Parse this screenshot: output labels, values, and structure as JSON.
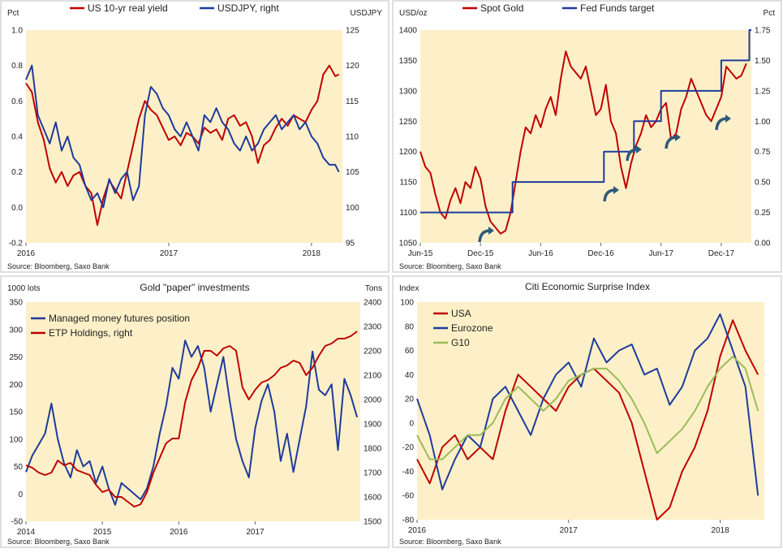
{
  "colors": {
    "red": "#c00000",
    "blue": "#1f3a9c",
    "green": "#9bbb59",
    "plot_bg": "#fdf0c8",
    "frame": "#bfbfbf"
  },
  "chart_data": [
    {
      "type": "line",
      "left_unit": "Pct",
      "right_unit": "USDJPY",
      "source": "Source: Bloomberg, Saxo Bank",
      "x_ticks": [
        "2016",
        "2017",
        "2018"
      ],
      "x_range": [
        0,
        26.6
      ],
      "left_ticks": [
        "1.0",
        "0.8",
        "0.6",
        "0.4",
        "0.2",
        "0.0",
        "-0.2"
      ],
      "ylim_left": [
        -0.2,
        1.0
      ],
      "right_ticks": [
        "125",
        "120",
        "115",
        "110",
        "105",
        "100",
        "95"
      ],
      "ylim_right": [
        95,
        125
      ],
      "legend": [
        "US 10-yr real yield",
        "USDJPY, right"
      ],
      "series": [
        {
          "name": "US 10-yr real yield",
          "color": "red",
          "axis": "left",
          "x": [
            0,
            0.5,
            1,
            1.5,
            2,
            2.5,
            3,
            3.5,
            4,
            4.5,
            5,
            5.5,
            6,
            6.5,
            7,
            7.5,
            8,
            8.5,
            9,
            9.5,
            10,
            10.5,
            11,
            11.5,
            12,
            12.5,
            13,
            13.5,
            14,
            14.5,
            15,
            15.5,
            16,
            16.5,
            17,
            17.5,
            18,
            18.5,
            19,
            19.5,
            20,
            20.5,
            21,
            21.5,
            22,
            22.5,
            23,
            23.5,
            24,
            24.5,
            25,
            25.5,
            26,
            26.3
          ],
          "values": [
            0.7,
            0.65,
            0.48,
            0.38,
            0.22,
            0.14,
            0.2,
            0.12,
            0.18,
            0.2,
            0.12,
            0.08,
            -0.1,
            0.05,
            0.15,
            0.1,
            0.05,
            0.2,
            0.35,
            0.5,
            0.6,
            0.55,
            0.52,
            0.45,
            0.38,
            0.4,
            0.35,
            0.42,
            0.4,
            0.36,
            0.45,
            0.42,
            0.44,
            0.38,
            0.5,
            0.52,
            0.46,
            0.48,
            0.4,
            0.25,
            0.35,
            0.38,
            0.45,
            0.5,
            0.46,
            0.52,
            0.5,
            0.48,
            0.55,
            0.6,
            0.75,
            0.8,
            0.74,
            0.75
          ]
        },
        {
          "name": "USDJPY, right",
          "color": "blue",
          "axis": "right",
          "x": [
            0,
            0.5,
            1,
            1.5,
            2,
            2.5,
            3,
            3.5,
            4,
            4.5,
            5,
            5.5,
            6,
            6.5,
            7,
            7.5,
            8,
            8.5,
            9,
            9.5,
            10,
            10.5,
            11,
            11.5,
            12,
            12.5,
            13,
            13.5,
            14,
            14.5,
            15,
            15.5,
            16,
            16.5,
            17,
            17.5,
            18,
            18.5,
            19,
            19.5,
            20,
            20.5,
            21,
            21.5,
            22,
            22.5,
            23,
            23.5,
            24,
            24.5,
            25,
            25.5,
            26,
            26.3
          ],
          "values": [
            118,
            120,
            113,
            111,
            109,
            112,
            108,
            110,
            107,
            106,
            103,
            101,
            102,
            100,
            104,
            102,
            104,
            105,
            101,
            103,
            113,
            117,
            116,
            114,
            113,
            111,
            110,
            112,
            110,
            108,
            113,
            112,
            114,
            112,
            111,
            109,
            108,
            110,
            108,
            109,
            111,
            112,
            113,
            111,
            112,
            113,
            111,
            112,
            110,
            109,
            107,
            106,
            106,
            105
          ]
        }
      ]
    },
    {
      "type": "line",
      "left_unit": "USD/oz",
      "right_unit": "Pct",
      "source": "Source: Bloomberg, Saxo Bank",
      "x_ticks": [
        "Jun-15",
        "Dec-15",
        "Jun-16",
        "Dec-16",
        "Jun-17",
        "Dec-17"
      ],
      "x_range": [
        0,
        33
      ],
      "left_ticks": [
        "1400",
        "1350",
        "1300",
        "1250",
        "1200",
        "1150",
        "1100",
        "1050"
      ],
      "ylim_left": [
        1050,
        1400
      ],
      "right_ticks": [
        "1.75",
        "1.50",
        "1.25",
        "1.00",
        "0.75",
        "0.50",
        "0.25",
        "0.00"
      ],
      "ylim_right": [
        0,
        1.75
      ],
      "legend": [
        "Spot Gold",
        "Fed Funds target"
      ],
      "series": [
        {
          "name": "Spot Gold",
          "color": "red",
          "axis": "left",
          "x": [
            0,
            0.5,
            1,
            1.5,
            2,
            2.5,
            3,
            3.5,
            4,
            4.5,
            5,
            5.5,
            6,
            6.5,
            7,
            7.5,
            8,
            8.5,
            9,
            9.5,
            10,
            10.5,
            11,
            11.5,
            12,
            12.5,
            13,
            13.5,
            14,
            14.5,
            15,
            15.5,
            16,
            16.5,
            17,
            17.5,
            18,
            18.5,
            19,
            19.5,
            20,
            20.5,
            21,
            21.5,
            22,
            22.5,
            23,
            23.5,
            24,
            24.5,
            25,
            25.5,
            26,
            26.5,
            27,
            27.5,
            28,
            28.5,
            29,
            29.5,
            30,
            30.5,
            31,
            31.5,
            32,
            32.5
          ],
          "values": [
            1200,
            1175,
            1165,
            1130,
            1100,
            1090,
            1120,
            1140,
            1115,
            1150,
            1140,
            1175,
            1155,
            1110,
            1085,
            1075,
            1065,
            1070,
            1100,
            1150,
            1200,
            1240,
            1230,
            1260,
            1240,
            1270,
            1290,
            1260,
            1320,
            1365,
            1340,
            1330,
            1320,
            1340,
            1300,
            1260,
            1270,
            1310,
            1250,
            1230,
            1175,
            1140,
            1180,
            1210,
            1230,
            1260,
            1240,
            1250,
            1270,
            1280,
            1220,
            1230,
            1270,
            1290,
            1320,
            1300,
            1280,
            1260,
            1250,
            1270,
            1290,
            1340,
            1330,
            1320,
            1325,
            1345
          ]
        },
        {
          "name": "Fed Funds target",
          "color": "blue",
          "axis": "right",
          "step": true,
          "x": [
            0,
            9.2,
            18.3,
            21.3,
            24,
            30,
            32.8,
            33
          ],
          "values": [
            0.25,
            0.5,
            0.75,
            1.0,
            1.25,
            1.5,
            1.75,
            1.75
          ]
        }
      ]
    },
    {
      "type": "line",
      "title": "Gold \"paper\" investments",
      "left_unit": "1000 lots",
      "right_unit": "Tons",
      "source": "Source: Bloomberg, Saxo Bank",
      "x_ticks": [
        "2014",
        "2015",
        "2016",
        "2017"
      ],
      "x_range": [
        0,
        52.5
      ],
      "left_ticks": [
        "350",
        "300",
        "250",
        "200",
        "150",
        "100",
        "50",
        "0",
        "-50"
      ],
      "ylim_left": [
        -50,
        350
      ],
      "right_ticks": [
        "2400",
        "2300",
        "2200",
        "2100",
        "2000",
        "1900",
        "1800",
        "1700",
        "1600",
        "1500"
      ],
      "ylim_right": [
        1500,
        2400
      ],
      "legend": [
        "Managed money futures position",
        "ETP Holdings, right"
      ],
      "series": [
        {
          "name": "Managed money futures position",
          "color": "blue",
          "axis": "left",
          "x": [
            0,
            1,
            2,
            3,
            4,
            5,
            6,
            7,
            8,
            9,
            10,
            11,
            12,
            13,
            14,
            15,
            16,
            17,
            18,
            19,
            20,
            21,
            22,
            23,
            24,
            25,
            26,
            27,
            28,
            29,
            30,
            31,
            32,
            33,
            34,
            35,
            36,
            37,
            38,
            39,
            40,
            41,
            42,
            43,
            44,
            45,
            46,
            47,
            48,
            49,
            50,
            51,
            52
          ],
          "values": [
            40,
            70,
            90,
            110,
            165,
            100,
            55,
            30,
            80,
            50,
            60,
            20,
            50,
            10,
            -20,
            20,
            10,
            0,
            -10,
            10,
            50,
            110,
            160,
            230,
            210,
            280,
            250,
            270,
            230,
            150,
            200,
            250,
            170,
            100,
            60,
            30,
            120,
            170,
            200,
            150,
            60,
            110,
            40,
            100,
            160,
            260,
            190,
            180,
            200,
            80,
            210,
            180,
            140
          ]
        },
        {
          "name": "ETP Holdings, right",
          "color": "red",
          "axis": "right",
          "x": [
            0,
            1,
            2,
            3,
            4,
            5,
            6,
            7,
            8,
            9,
            10,
            11,
            12,
            13,
            14,
            15,
            16,
            17,
            18,
            19,
            20,
            21,
            22,
            23,
            24,
            25,
            26,
            27,
            28,
            29,
            30,
            31,
            32,
            33,
            34,
            35,
            36,
            37,
            38,
            39,
            40,
            41,
            42,
            43,
            44,
            45,
            46,
            47,
            48,
            49,
            50,
            51,
            52
          ],
          "values": [
            1730,
            1720,
            1700,
            1690,
            1700,
            1750,
            1730,
            1740,
            1710,
            1700,
            1690,
            1650,
            1620,
            1630,
            1600,
            1600,
            1580,
            1560,
            1570,
            1620,
            1700,
            1760,
            1820,
            1840,
            1840,
            1990,
            2080,
            2130,
            2200,
            2200,
            2180,
            2210,
            2220,
            2200,
            2050,
            2000,
            2040,
            2070,
            2080,
            2100,
            2130,
            2140,
            2160,
            2150,
            2100,
            2130,
            2180,
            2220,
            2230,
            2250,
            2250,
            2260,
            2280
          ]
        }
      ]
    },
    {
      "type": "line",
      "title": "Citi Economic Surprise Index",
      "left_unit": "Index",
      "source": "Source: Bloomberg, Saxo Bank",
      "x_ticks": [
        "2016",
        "2017",
        "2018"
      ],
      "x_range": [
        0,
        27.5
      ],
      "left_ticks": [
        "100",
        "80",
        "60",
        "40",
        "20",
        "0",
        "-20",
        "-40",
        "-60",
        "-80"
      ],
      "ylim_left": [
        -80,
        100
      ],
      "legend": [
        "USA",
        "Eurozone",
        "G10"
      ],
      "series": [
        {
          "name": "USA",
          "color": "red",
          "axis": "left",
          "x": [
            0,
            1,
            2,
            3,
            4,
            5,
            6,
            7,
            8,
            9,
            10,
            11,
            12,
            13,
            14,
            15,
            16,
            17,
            18,
            19,
            20,
            21,
            22,
            23,
            24,
            25,
            26,
            27
          ],
          "values": [
            -30,
            -50,
            -20,
            -10,
            -30,
            -20,
            -30,
            10,
            40,
            30,
            20,
            10,
            30,
            40,
            45,
            35,
            25,
            0,
            -40,
            -80,
            -70,
            -40,
            -20,
            10,
            55,
            85,
            60,
            40
          ]
        },
        {
          "name": "Eurozone",
          "color": "blue",
          "axis": "left",
          "x": [
            0,
            1,
            2,
            3,
            4,
            5,
            6,
            7,
            8,
            9,
            10,
            11,
            12,
            13,
            14,
            15,
            16,
            17,
            18,
            19,
            20,
            21,
            22,
            23,
            24,
            25,
            26,
            27
          ],
          "values": [
            20,
            -10,
            -55,
            -30,
            -10,
            -20,
            20,
            30,
            10,
            -10,
            20,
            40,
            50,
            30,
            70,
            50,
            60,
            65,
            40,
            45,
            15,
            30,
            60,
            70,
            90,
            60,
            30,
            -60
          ]
        },
        {
          "name": "G10",
          "color": "green",
          "axis": "left",
          "x": [
            0,
            1,
            2,
            3,
            4,
            5,
            6,
            7,
            8,
            9,
            10,
            11,
            12,
            13,
            14,
            15,
            16,
            17,
            18,
            19,
            20,
            21,
            22,
            23,
            24,
            25,
            26,
            27
          ],
          "values": [
            -10,
            -30,
            -30,
            -20,
            -10,
            -10,
            0,
            20,
            30,
            20,
            10,
            20,
            35,
            40,
            45,
            45,
            35,
            20,
            0,
            -25,
            -15,
            -5,
            10,
            30,
            45,
            55,
            45,
            10
          ]
        }
      ]
    }
  ]
}
